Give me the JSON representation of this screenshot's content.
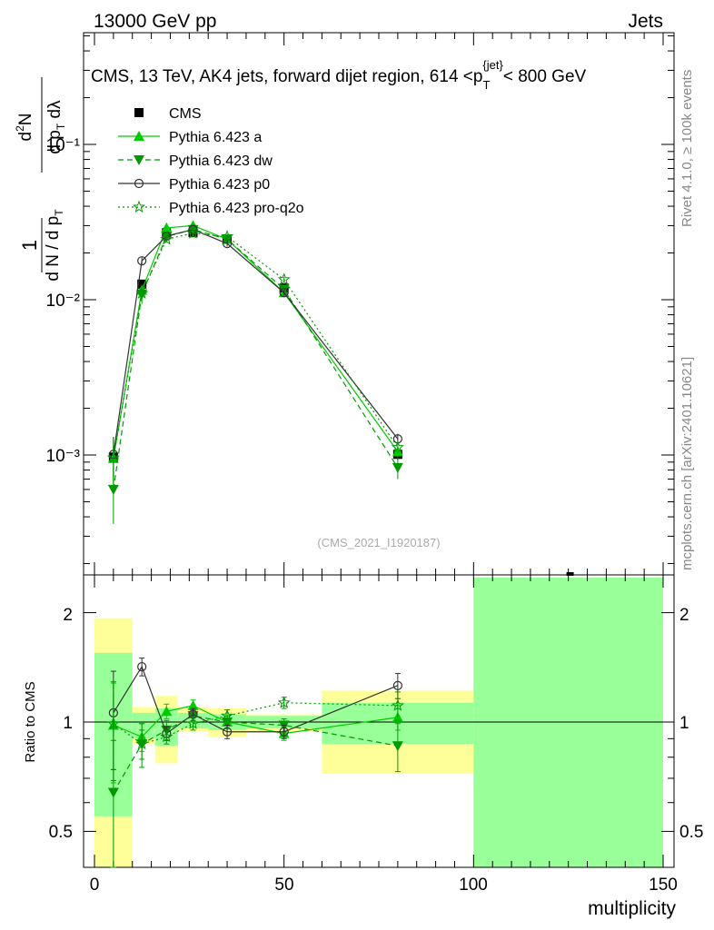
{
  "header": {
    "left": "13000 GeV pp",
    "right": "Jets"
  },
  "title": {
    "prefix": "CMS, 13 TeV, AK4 jets, forward dijet region, 614 <p",
    "sub": "T",
    "sup": "{jet}",
    "suffix": "< 800 GeV"
  },
  "side_texts": {
    "rivet": "Rivet 4.1.0, ≥ 100k events",
    "site": "mcplots.cern.ch [arXiv:2401.10621]"
  },
  "watermark": "(CMS_2021_I1920187)",
  "colors": {
    "green": "#00cc00",
    "dark_green": "#009900",
    "gray": "#333333",
    "band_green": "#99ff99",
    "band_yellow": "#ffff99"
  },
  "chart_data": [
    {
      "type": "line",
      "panel": "main",
      "ylabel": "1/dN/dp_T  d²N/dp_T dλ",
      "yscale": "log",
      "ylim": [
        0.00018,
        0.32
      ],
      "xlim": [
        -2,
        150
      ],
      "ytick_labels": [
        "10⁻³",
        "10⁻²",
        "10⁻¹"
      ],
      "legend_position": "top-left",
      "series": [
        {
          "name": "CMS",
          "marker": "square",
          "x": [
            5,
            12.5,
            19,
            26,
            35,
            50,
            80
          ],
          "y": [
            0.00097,
            0.0126,
            0.027,
            0.027,
            0.0245,
            0.0119,
            0.00101
          ],
          "yerr": [
            0.0001,
            0.0007,
            0.001,
            0.001,
            0.001,
            0.0006,
            8e-05
          ]
        },
        {
          "name": "Pythia 6.423 a",
          "marker": "triangle-up",
          "x": [
            5,
            12.5,
            19,
            26,
            35,
            50,
            80
          ],
          "y": [
            0.00095,
            0.0115,
            0.029,
            0.03,
            0.0245,
            0.0111,
            0.00105
          ],
          "yerr": [
            0.0003,
            0.001,
            0.001,
            0.001,
            0.001,
            0.0005,
            8e-05
          ]
        },
        {
          "name": "Pythia 6.423 dw",
          "marker": "triangle-down",
          "x": [
            5,
            12.5,
            19,
            26,
            35,
            50,
            80
          ],
          "y": [
            0.0006,
            0.0109,
            0.0255,
            0.0283,
            0.0245,
            0.0117,
            0.00083
          ],
          "yerr": [
            0.00024,
            0.0015,
            0.0015,
            0.001,
            0.001,
            0.0005,
            0.00013
          ]
        },
        {
          "name": "Pythia 6.423 p0",
          "marker": "circle-open",
          "x": [
            5,
            12.5,
            19,
            26,
            35,
            50,
            80
          ],
          "y": [
            0.00101,
            0.0178,
            0.0257,
            0.0283,
            0.023,
            0.0111,
            0.00127
          ],
          "yerr": [
            0.0003,
            0.001,
            0.001,
            0.001,
            0.001,
            0.0005,
            0.0001
          ]
        },
        {
          "name": "Pythia 6.423 pro-q2o",
          "marker": "star",
          "x": [
            5,
            12.5,
            19,
            26,
            35,
            50,
            80
          ],
          "y": [
            0.00096,
            0.011,
            0.0245,
            0.0268,
            0.0255,
            0.0135,
            0.00112
          ],
          "yerr": [
            0.0003,
            0.001,
            0.001,
            0.001,
            0.001,
            0.0005,
            0.0001
          ]
        }
      ]
    },
    {
      "type": "line",
      "panel": "ratio",
      "ylabel": "Ratio to CMS",
      "xlabel": "multiplicity",
      "ylim": [
        0.42,
        2.25
      ],
      "xlim": [
        -2,
        150
      ],
      "xticks": [
        0,
        50,
        100,
        150
      ],
      "yticks": [
        0.5,
        1,
        2
      ],
      "bands": [
        {
          "x0": 0,
          "x1": 10,
          "yellow": [
            0.3,
            1.93
          ],
          "green": [
            0.55,
            1.55
          ]
        },
        {
          "x0": 10,
          "x1": 16,
          "yellow": [
            0.87,
            1.1
          ],
          "green": [
            0.9,
            1.06
          ]
        },
        {
          "x0": 16,
          "x1": 22,
          "yellow": [
            0.77,
            1.18
          ],
          "green": [
            0.86,
            1.09
          ]
        },
        {
          "x0": 22,
          "x1": 30,
          "yellow": [
            0.94,
            1.1
          ],
          "green": [
            0.96,
            1.06
          ]
        },
        {
          "x0": 30,
          "x1": 40,
          "yellow": [
            0.91,
            1.09
          ],
          "green": [
            0.95,
            1.05
          ]
        },
        {
          "x0": 40,
          "x1": 60,
          "yellow": [
            0.94,
            1.05
          ],
          "green": [
            0.96,
            1.04
          ]
        },
        {
          "x0": 60,
          "x1": 100,
          "yellow": [
            0.72,
            1.22
          ],
          "green": [
            0.87,
            1.13
          ]
        },
        {
          "x0": 100,
          "x1": 150,
          "yellow": [
            0.3,
            2.5
          ],
          "green": [
            0.3,
            2.5
          ]
        }
      ],
      "series": [
        {
          "name": "Pythia 6.423 a",
          "x": [
            5,
            12.5,
            19,
            26,
            35,
            50,
            80
          ],
          "y": [
            0.98,
            0.91,
            1.07,
            1.11,
            1.0,
            0.93,
            1.03
          ],
          "yerr": [
            0.3,
            0.08,
            0.05,
            0.04,
            0.04,
            0.04,
            0.08
          ]
        },
        {
          "name": "Pythia 6.423 dw",
          "x": [
            5,
            12.5,
            19,
            26,
            35,
            50,
            80
          ],
          "y": [
            0.64,
            0.87,
            0.95,
            1.04,
            1.0,
            0.98,
            0.86
          ],
          "yerr": [
            0.25,
            0.12,
            0.06,
            0.04,
            0.04,
            0.04,
            0.13
          ]
        },
        {
          "name": "Pythia 6.423 p0",
          "x": [
            5,
            12.5,
            19,
            26,
            35,
            50,
            80
          ],
          "y": [
            1.06,
            1.42,
            0.93,
            1.05,
            0.94,
            0.94,
            1.26
          ],
          "yerr": [
            0.32,
            0.08,
            0.04,
            0.04,
            0.04,
            0.04,
            0.1
          ]
        },
        {
          "name": "Pythia 6.423 pro-q2o",
          "x": [
            5,
            12.5,
            19,
            26,
            35,
            50,
            80
          ],
          "y": [
            0.99,
            0.87,
            0.91,
            0.99,
            1.04,
            1.13,
            1.11
          ],
          "yerr": [
            0.3,
            0.08,
            0.04,
            0.04,
            0.04,
            0.04,
            0.1
          ]
        }
      ]
    }
  ]
}
